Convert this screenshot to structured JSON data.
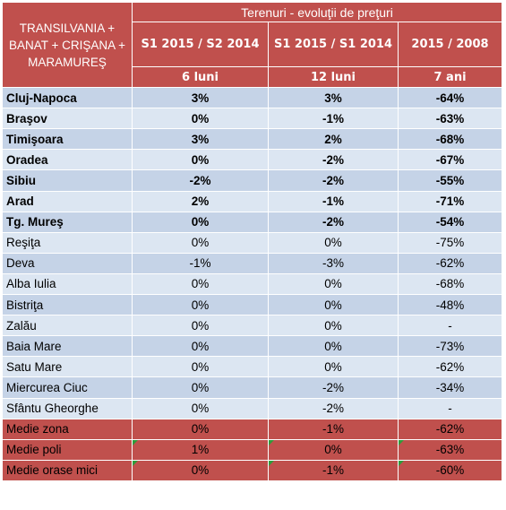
{
  "header": {
    "region": "TRANSILVANIA + BANAT + CRIŞANA + MARAMUREŞ",
    "title": "Terenuri - evoluţii de preţuri",
    "periods": [
      {
        "label": "S1 2015 / S2 2014",
        "span": "6 luni"
      },
      {
        "label": "S1 2015 / S1 2014",
        "span": "12 luni"
      },
      {
        "label": "2015 / 2008",
        "span": "7 ani"
      }
    ]
  },
  "rows": [
    {
      "city": "Cluj-Napoca",
      "v1": "3%",
      "v2": "3%",
      "v3": "-64%",
      "bold": true
    },
    {
      "city": "Braşov",
      "v1": "0%",
      "v2": "-1%",
      "v3": "-63%",
      "bold": true
    },
    {
      "city": "Timişoara",
      "v1": "3%",
      "v2": "2%",
      "v3": "-68%",
      "bold": true
    },
    {
      "city": "Oradea",
      "v1": "0%",
      "v2": "-2%",
      "v3": "-67%",
      "bold": true
    },
    {
      "city": "Sibiu",
      "v1": "-2%",
      "v2": "-2%",
      "v3": "-55%",
      "bold": true
    },
    {
      "city": "Arad",
      "v1": "2%",
      "v2": "-1%",
      "v3": "-71%",
      "bold": true
    },
    {
      "city": "Tg. Mureş",
      "v1": "0%",
      "v2": "-2%",
      "v3": "-54%",
      "bold": true
    },
    {
      "city": "Reşiţa",
      "v1": "0%",
      "v2": "0%",
      "v3": "-75%",
      "bold": false
    },
    {
      "city": "Deva",
      "v1": "-1%",
      "v2": "-3%",
      "v3": "-62%",
      "bold": false
    },
    {
      "city": "Alba Iulia",
      "v1": "0%",
      "v2": "0%",
      "v3": "-68%",
      "bold": false
    },
    {
      "city": "Bistriţa",
      "v1": "0%",
      "v2": "0%",
      "v3": "-48%",
      "bold": false
    },
    {
      "city": "Zalău",
      "v1": "0%",
      "v2": "0%",
      "v3": "-",
      "bold": false
    },
    {
      "city": "Baia Mare",
      "v1": "0%",
      "v2": "0%",
      "v3": "-73%",
      "bold": false
    },
    {
      "city": "Satu Mare",
      "v1": "0%",
      "v2": "0%",
      "v3": "-62%",
      "bold": false
    },
    {
      "city": "Miercurea Ciuc",
      "v1": "0%",
      "v2": "-2%",
      "v3": "-34%",
      "bold": false
    },
    {
      "city": "Sfântu Gheorghe",
      "v1": "0%",
      "v2": "-2%",
      "v3": "-",
      "bold": false
    }
  ],
  "summary": [
    {
      "city": "Medie zona",
      "v1": "0%",
      "v2": "-1%",
      "v3": "-62%"
    },
    {
      "city": "Medie poli",
      "v1": "1%",
      "v2": "0%",
      "v3": "-63%"
    },
    {
      "city": "Medie orase mici",
      "v1": "0%",
      "v2": "-1%",
      "v3": "-60%"
    }
  ]
}
